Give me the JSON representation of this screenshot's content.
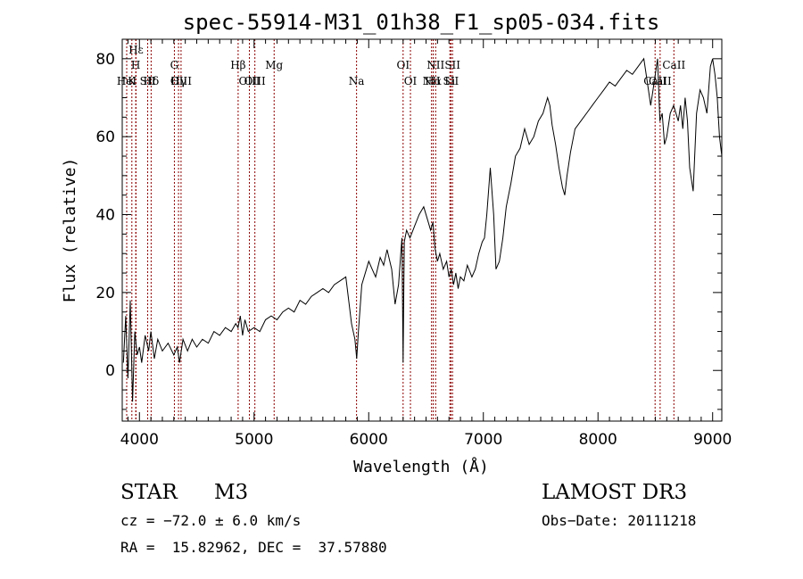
{
  "chart_data": {
    "type": "line",
    "title": "spec-55914-M31_01h38_F1_sp05-034.fits",
    "xlabel": "Wavelength (Å)",
    "ylabel": "Flux (relative)",
    "xlim": [
      3850,
      9080
    ],
    "ylim": [
      -13,
      85
    ],
    "xticks": [
      4000,
      5000,
      6000,
      7000,
      8000,
      9000
    ],
    "yticks": [
      0,
      20,
      40,
      60,
      80
    ],
    "spectrum_color": "#000000",
    "marker_color": "#8b0000",
    "series": [
      {
        "name": "flux",
        "x": [
          3860,
          3880,
          3900,
          3920,
          3940,
          3960,
          3980,
          4000,
          4020,
          4050,
          4080,
          4100,
          4130,
          4160,
          4200,
          4250,
          4300,
          4330,
          4350,
          4380,
          4420,
          4460,
          4500,
          4550,
          4600,
          4650,
          4700,
          4750,
          4800,
          4840,
          4860,
          4880,
          4900,
          4920,
          4950,
          5000,
          5050,
          5100,
          5150,
          5200,
          5250,
          5300,
          5350,
          5400,
          5450,
          5500,
          5550,
          5600,
          5650,
          5700,
          5750,
          5800,
          5850,
          5880,
          5895,
          5910,
          5940,
          5980,
          6000,
          6030,
          6060,
          6100,
          6130,
          6160,
          6200,
          6230,
          6260,
          6280,
          6290,
          6300,
          6310,
          6330,
          6360,
          6400,
          6440,
          6480,
          6520,
          6540,
          6560,
          6580,
          6600,
          6620,
          6650,
          6680,
          6700,
          6720,
          6740,
          6760,
          6780,
          6800,
          6830,
          6860,
          6900,
          6930,
          6960,
          6990,
          7010,
          7030,
          7060,
          7090,
          7110,
          7140,
          7170,
          7200,
          7240,
          7280,
          7320,
          7360,
          7400,
          7440,
          7480,
          7520,
          7560,
          7580,
          7600,
          7630,
          7660,
          7690,
          7710,
          7730,
          7760,
          7800,
          7850,
          7900,
          7950,
          8000,
          8050,
          8100,
          8150,
          8200,
          8250,
          8300,
          8350,
          8400,
          8430,
          8460,
          8480,
          8500,
          8520,
          8540,
          8560,
          8580,
          8600,
          8630,
          8660,
          8700,
          8720,
          8740,
          8760,
          8780,
          8800,
          8830,
          8860,
          8890,
          8920,
          8950,
          8980,
          9000,
          9020,
          9040,
          9060,
          9080
        ],
        "y": [
          2,
          14,
          -2,
          18,
          -8,
          10,
          4,
          6,
          2,
          9,
          5,
          10,
          3,
          8,
          5,
          7,
          4,
          6,
          2,
          8,
          5,
          8,
          6,
          8,
          7,
          10,
          9,
          11,
          10,
          12,
          11,
          14,
          9,
          13,
          10,
          11,
          10,
          13,
          14,
          13,
          15,
          16,
          15,
          18,
          17,
          19,
          20,
          21,
          20,
          22,
          23,
          24,
          12,
          8,
          3,
          10,
          22,
          26,
          28,
          26,
          24,
          29,
          27,
          31,
          26,
          17,
          22,
          30,
          34,
          2,
          33,
          36,
          34,
          37,
          40,
          42,
          38,
          36,
          38,
          31,
          28,
          30,
          26,
          28,
          24,
          26,
          22,
          25,
          21,
          24,
          23,
          27,
          24,
          26,
          30,
          33,
          34,
          40,
          52,
          40,
          26,
          28,
          34,
          42,
          48,
          55,
          57,
          62,
          58,
          60,
          64,
          66,
          70,
          68,
          63,
          58,
          52,
          47,
          45,
          50,
          56,
          62,
          64,
          66,
          68,
          70,
          72,
          74,
          73,
          75,
          77,
          76,
          78,
          80,
          74,
          68,
          72,
          76,
          80,
          64,
          66,
          58,
          60,
          66,
          68,
          64,
          68,
          62,
          70,
          64,
          52,
          46,
          66,
          72,
          70,
          66,
          78,
          80,
          76,
          70,
          60,
          55
        ]
      }
    ],
    "line_markers": [
      {
        "wl": 3889,
        "label": "HeI",
        "row": 3
      },
      {
        "wl": 3934,
        "label": "K",
        "row": 2
      },
      {
        "wl": 3968,
        "label": "H",
        "row": 1
      },
      {
        "wl": 3970,
        "label": "Hε",
        "row": 0
      },
      {
        "wl": 4072,
        "label": "SII",
        "row": 3
      },
      {
        "wl": 4102,
        "label": "Hδ",
        "row": 2
      },
      {
        "wl": 4305,
        "label": "G",
        "row": 1
      },
      {
        "wl": 4341,
        "label": "Hγ",
        "row": 3
      },
      {
        "wl": 4363,
        "label": "OIII",
        "row": 2
      },
      {
        "wl": 4861,
        "label": "Hβ",
        "row": 1
      },
      {
        "wl": 4959,
        "label": "OIII",
        "row": 3
      },
      {
        "wl": 5007,
        "label": "OIII",
        "row": 2
      },
      {
        "wl": 5175,
        "label": "Mg",
        "row": 1
      },
      {
        "wl": 5894,
        "label": "Na",
        "row": 3
      },
      {
        "wl": 6300,
        "label": "OI",
        "row": 1
      },
      {
        "wl": 6364,
        "label": "OI",
        "row": 2
      },
      {
        "wl": 6548,
        "label": "NII",
        "row": 3
      },
      {
        "wl": 6563,
        "label": "Hα",
        "row": 2
      },
      {
        "wl": 6584,
        "label": "NII",
        "row": 1
      },
      {
        "wl": 6708,
        "label": "Li",
        "row": 3
      },
      {
        "wl": 6717,
        "label": "SII",
        "row": 2
      },
      {
        "wl": 6731,
        "label": "SII",
        "row": 1
      },
      {
        "wl": 8498,
        "label": "CaII",
        "row": 3
      },
      {
        "wl": 8542,
        "label": "CaII",
        "row": 2
      },
      {
        "wl": 8662,
        "label": "CaII",
        "row": 1
      }
    ]
  },
  "info": {
    "class": "STAR",
    "subclass": "M3",
    "survey": "LAMOST DR3",
    "cz": "cz = −72.0 ± 6.0 km/s",
    "obs_date": "Obs−Date: 20111218",
    "radec": "RA =  15.82962, DEC =  37.57880"
  }
}
